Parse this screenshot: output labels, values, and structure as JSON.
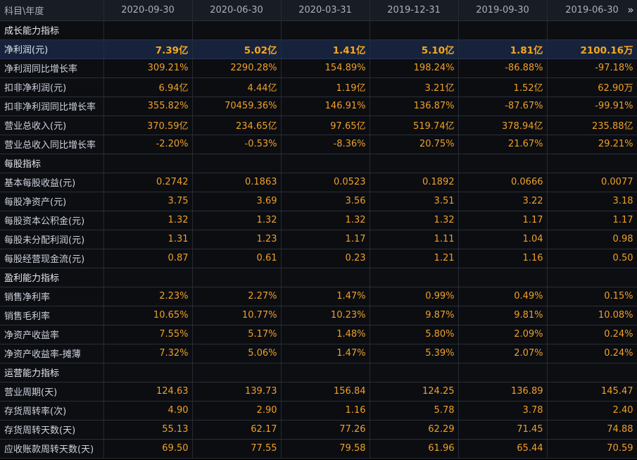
{
  "header": {
    "corner_label": "科目\\年度",
    "periods": [
      "2020-09-30",
      "2020-06-30",
      "2020-03-31",
      "2019-12-31",
      "2019-09-30",
      "2019-06-30"
    ],
    "more_glyph": "»"
  },
  "rows": [
    {
      "label": "成长能力指标",
      "section": true,
      "values": [
        "",
        "",
        "",
        "",
        "",
        ""
      ]
    },
    {
      "label": "净利润(元)",
      "highlight": true,
      "values": [
        "7.39亿",
        "5.02亿",
        "1.41亿",
        "5.10亿",
        "1.81亿",
        "2100.16万"
      ]
    },
    {
      "label": "净利润同比增长率",
      "values": [
        "309.21%",
        "2290.28%",
        "154.89%",
        "198.24%",
        "-86.88%",
        "-97.18%"
      ]
    },
    {
      "label": "扣非净利润(元)",
      "values": [
        "6.94亿",
        "4.44亿",
        "1.19亿",
        "3.21亿",
        "1.52亿",
        "62.90万"
      ]
    },
    {
      "label": "扣非净利润同比增长率",
      "values": [
        "355.82%",
        "70459.36%",
        "146.91%",
        "136.87%",
        "-87.67%",
        "-99.91%"
      ]
    },
    {
      "label": "营业总收入(元)",
      "values": [
        "370.59亿",
        "234.65亿",
        "97.65亿",
        "519.74亿",
        "378.94亿",
        "235.88亿"
      ]
    },
    {
      "label": "营业总收入同比增长率",
      "values": [
        "-2.20%",
        "-0.53%",
        "-8.36%",
        "20.75%",
        "21.67%",
        "29.21%"
      ]
    },
    {
      "label": "每股指标",
      "section": true,
      "values": [
        "",
        "",
        "",
        "",
        "",
        ""
      ]
    },
    {
      "label": "基本每股收益(元)",
      "values": [
        "0.2742",
        "0.1863",
        "0.0523",
        "0.1892",
        "0.0666",
        "0.0077"
      ]
    },
    {
      "label": "每股净资产(元)",
      "values": [
        "3.75",
        "3.69",
        "3.56",
        "3.51",
        "3.22",
        "3.18"
      ]
    },
    {
      "label": "每股资本公积金(元)",
      "values": [
        "1.32",
        "1.32",
        "1.32",
        "1.32",
        "1.17",
        "1.17"
      ]
    },
    {
      "label": "每股未分配利润(元)",
      "values": [
        "1.31",
        "1.23",
        "1.17",
        "1.11",
        "1.04",
        "0.98"
      ]
    },
    {
      "label": "每股经营现金流(元)",
      "values": [
        "0.87",
        "0.61",
        "0.23",
        "1.21",
        "1.16",
        "0.50"
      ]
    },
    {
      "label": "盈利能力指标",
      "section": true,
      "values": [
        "",
        "",
        "",
        "",
        "",
        ""
      ]
    },
    {
      "label": "销售净利率",
      "values": [
        "2.23%",
        "2.27%",
        "1.47%",
        "0.99%",
        "0.49%",
        "0.15%"
      ]
    },
    {
      "label": "销售毛利率",
      "values": [
        "10.65%",
        "10.77%",
        "10.23%",
        "9.87%",
        "9.81%",
        "10.08%"
      ]
    },
    {
      "label": "净资产收益率",
      "values": [
        "7.55%",
        "5.17%",
        "1.48%",
        "5.80%",
        "2.09%",
        "0.24%"
      ]
    },
    {
      "label": "净资产收益率-摊薄",
      "values": [
        "7.32%",
        "5.06%",
        "1.47%",
        "5.39%",
        "2.07%",
        "0.24%"
      ]
    },
    {
      "label": "运营能力指标",
      "section": true,
      "values": [
        "",
        "",
        "",
        "",
        "",
        ""
      ]
    },
    {
      "label": "营业周期(天)",
      "values": [
        "124.63",
        "139.73",
        "156.84",
        "124.25",
        "136.89",
        "145.47"
      ]
    },
    {
      "label": "存货周转率(次)",
      "values": [
        "4.90",
        "2.90",
        "1.16",
        "5.78",
        "3.78",
        "2.40"
      ]
    },
    {
      "label": "存货周转天数(天)",
      "values": [
        "55.13",
        "62.17",
        "77.26",
        "62.29",
        "71.45",
        "74.88"
      ]
    },
    {
      "label": "应收账款周转天数(天)",
      "values": [
        "69.50",
        "77.55",
        "79.58",
        "61.96",
        "65.44",
        "70.59"
      ]
    }
  ]
}
